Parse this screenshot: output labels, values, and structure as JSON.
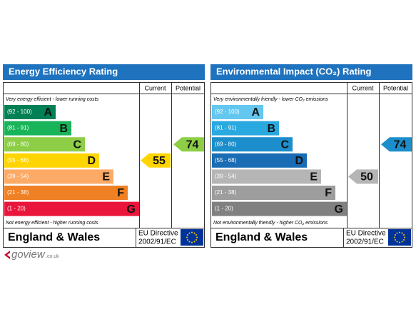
{
  "panels": [
    {
      "title": "Energy Efficiency Rating",
      "column_headers": [
        "Current",
        "Potential"
      ],
      "top_note": "Very energy efficient - lower running costs",
      "bands": [
        {
          "range": "(92 - 100)",
          "letter": "A"
        },
        {
          "range": "(81 - 91)",
          "letter": "B"
        },
        {
          "range": "(69 - 80)",
          "letter": "C"
        },
        {
          "range": "(55 - 68)",
          "letter": "D"
        },
        {
          "range": "(39 - 54)",
          "letter": "E"
        },
        {
          "range": "(21 - 38)",
          "letter": "F"
        },
        {
          "range": "(1 - 20)",
          "letter": "G"
        }
      ],
      "bottom_note": "Not energy efficient - higher running costs",
      "current": 55,
      "potential": 74,
      "footer": {
        "region": "England & Wales",
        "directive": "EU Directive",
        "code": "2002/91/EC"
      }
    },
    {
      "title": "Environmental Impact (CO₂) Rating",
      "column_headers": [
        "Current",
        "Potential"
      ],
      "top_note": "Very environmentally friendly - lower CO₂ emissions",
      "bands": [
        {
          "range": "(92 - 100)",
          "letter": "A"
        },
        {
          "range": "(81 - 91)",
          "letter": "B"
        },
        {
          "range": "(69 - 80)",
          "letter": "C"
        },
        {
          "range": "(55 - 68)",
          "letter": "D"
        },
        {
          "range": "(39 - 54)",
          "letter": "E"
        },
        {
          "range": "(21 - 38)",
          "letter": "F"
        },
        {
          "range": "(1 - 20)",
          "letter": "G"
        }
      ],
      "bottom_note": "Not environmentally friendly - higher CO₂ emissions",
      "current": 50,
      "potential": 74,
      "footer": {
        "region": "England & Wales",
        "directive": "EU Directive",
        "code": "2002/91/EC"
      }
    }
  ],
  "logo": {
    "text": "goview",
    "suffix": ".co.uk"
  }
}
